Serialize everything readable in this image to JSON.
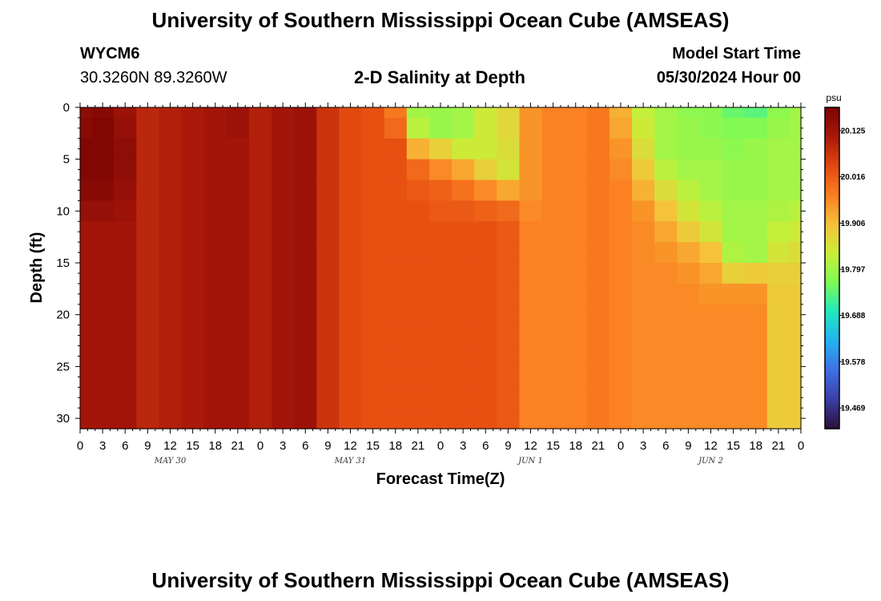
{
  "title": "University of Southern Mississippi Ocean Cube (AMSEAS)",
  "footer_title": "University of Southern Mississippi Ocean Cube (AMSEAS)",
  "station": {
    "id": "WYCM6",
    "coords": "30.3260N  89.3260W"
  },
  "model_start": {
    "label": "Model Start Time",
    "value": "05/30/2024 Hour 00"
  },
  "chart_data": {
    "type": "heatmap",
    "title": "2-D Salinity at Depth",
    "xlabel": "Forecast Time(Z)",
    "ylabel": "Depth (ft)",
    "unit": "psu",
    "x_ticks": [
      "0",
      "3",
      "6",
      "9",
      "12",
      "15",
      "18",
      "21",
      "0",
      "3",
      "6",
      "9",
      "12",
      "15",
      "18",
      "21",
      "0",
      "3",
      "6",
      "9",
      "12",
      "15",
      "18",
      "21",
      "0",
      "3",
      "6",
      "9",
      "12",
      "15",
      "18",
      "21",
      "0"
    ],
    "x_range_hours": [
      0,
      96
    ],
    "day_labels": [
      {
        "label": "MAY 30",
        "hour": 12
      },
      {
        "label": "MAY 31",
        "hour": 36
      },
      {
        "label": "JUN 1",
        "hour": 60
      },
      {
        "label": "JUN 2",
        "hour": 84
      }
    ],
    "y_ticks": [
      0,
      5,
      10,
      15,
      20,
      25,
      30
    ],
    "ylim": [
      0,
      31
    ],
    "y_inverted": true,
    "colorbar": {
      "labels": [
        "20.125",
        "20.016",
        "19.906",
        "19.797",
        "19.688",
        "19.578",
        "19.469"
      ],
      "min": 19.42,
      "max": 20.18,
      "colors": [
        "#2a0e3a",
        "#3b3fa5",
        "#3f6fe6",
        "#24b2f0",
        "#1fe8c0",
        "#7dfb55",
        "#c9ee38",
        "#f6c13a",
        "#fb7e21",
        "#e2480f",
        "#a9180a",
        "#7a0403"
      ]
    },
    "time_hours": [
      0,
      3,
      6,
      9,
      12,
      15,
      18,
      21,
      24,
      27,
      30,
      33,
      36,
      39,
      42,
      45,
      48,
      51,
      54,
      57,
      60,
      63,
      66,
      69,
      72,
      75,
      78,
      81,
      84,
      87,
      90,
      93,
      96
    ],
    "depths_ft": [
      0,
      2,
      4,
      6,
      8,
      10,
      12,
      14,
      16,
      18,
      20,
      22,
      24,
      26,
      28,
      30
    ],
    "salinity_by_time": [
      [
        20.15,
        20.16,
        20.17,
        20.17,
        20.16,
        20.14,
        20.12,
        20.12,
        20.12,
        20.12,
        20.12,
        20.12,
        20.12,
        20.12,
        20.12,
        20.12
      ],
      [
        20.16,
        20.17,
        20.17,
        20.17,
        20.16,
        20.14,
        20.12,
        20.12,
        20.12,
        20.12,
        20.12,
        20.12,
        20.12,
        20.12,
        20.12,
        20.12
      ],
      [
        20.13,
        20.14,
        20.15,
        20.15,
        20.14,
        20.13,
        20.12,
        20.12,
        20.12,
        20.12,
        20.12,
        20.12,
        20.12,
        20.12,
        20.12,
        20.12
      ],
      [
        20.09,
        20.09,
        20.09,
        20.09,
        20.09,
        20.09,
        20.09,
        20.09,
        20.09,
        20.09,
        20.09,
        20.09,
        20.09,
        20.09,
        20.09,
        20.09
      ],
      [
        20.1,
        20.1,
        20.1,
        20.1,
        20.1,
        20.1,
        20.1,
        20.1,
        20.1,
        20.1,
        20.1,
        20.1,
        20.1,
        20.1,
        20.1,
        20.1
      ],
      [
        20.11,
        20.11,
        20.11,
        20.11,
        20.11,
        20.11,
        20.11,
        20.11,
        20.11,
        20.11,
        20.11,
        20.11,
        20.11,
        20.11,
        20.11,
        20.11
      ],
      [
        20.12,
        20.12,
        20.12,
        20.12,
        20.12,
        20.12,
        20.12,
        20.12,
        20.12,
        20.12,
        20.12,
        20.12,
        20.12,
        20.12,
        20.12,
        20.12
      ],
      [
        20.13,
        20.13,
        20.12,
        20.12,
        20.12,
        20.12,
        20.12,
        20.12,
        20.12,
        20.12,
        20.12,
        20.12,
        20.12,
        20.12,
        20.12,
        20.12
      ],
      [
        20.1,
        20.1,
        20.1,
        20.1,
        20.1,
        20.1,
        20.1,
        20.1,
        20.1,
        20.1,
        20.1,
        20.1,
        20.1,
        20.1,
        20.1,
        20.1
      ],
      [
        20.12,
        20.12,
        20.12,
        20.12,
        20.12,
        20.12,
        20.12,
        20.12,
        20.12,
        20.12,
        20.12,
        20.12,
        20.12,
        20.12,
        20.12,
        20.12
      ],
      [
        20.13,
        20.13,
        20.13,
        20.13,
        20.13,
        20.13,
        20.13,
        20.13,
        20.13,
        20.13,
        20.13,
        20.13,
        20.13,
        20.13,
        20.13,
        20.13
      ],
      [
        20.07,
        20.07,
        20.07,
        20.07,
        20.07,
        20.07,
        20.07,
        20.07,
        20.07,
        20.07,
        20.07,
        20.07,
        20.07,
        20.07,
        20.07,
        20.07
      ],
      [
        20.04,
        20.04,
        20.04,
        20.04,
        20.04,
        20.04,
        20.04,
        20.04,
        20.04,
        20.04,
        20.04,
        20.04,
        20.04,
        20.04,
        20.04,
        20.04
      ],
      [
        20.03,
        20.03,
        20.03,
        20.03,
        20.03,
        20.03,
        20.03,
        20.03,
        20.03,
        20.03,
        20.03,
        20.03,
        20.03,
        20.03,
        20.03,
        20.03
      ],
      [
        19.98,
        20.0,
        20.03,
        20.03,
        20.03,
        20.03,
        20.03,
        20.03,
        20.03,
        20.03,
        20.03,
        20.03,
        20.03,
        20.03,
        20.03,
        20.03
      ],
      [
        19.8,
        19.82,
        19.92,
        20.0,
        20.02,
        20.03,
        20.03,
        20.03,
        20.03,
        20.03,
        20.03,
        20.03,
        20.03,
        20.03,
        20.03,
        20.03
      ],
      [
        19.79,
        19.79,
        19.88,
        19.96,
        20.01,
        20.02,
        20.03,
        20.03,
        20.03,
        20.03,
        20.03,
        20.03,
        20.03,
        20.03,
        20.03,
        20.03
      ],
      [
        19.8,
        19.8,
        19.84,
        19.93,
        19.99,
        20.02,
        20.03,
        20.03,
        20.03,
        20.03,
        20.03,
        20.03,
        20.03,
        20.03,
        20.03,
        20.03
      ],
      [
        19.84,
        19.84,
        19.84,
        19.88,
        19.96,
        20.01,
        20.03,
        20.03,
        20.03,
        20.03,
        20.03,
        20.03,
        20.03,
        20.03,
        20.03,
        20.03
      ],
      [
        19.87,
        19.87,
        19.86,
        19.85,
        19.93,
        20.0,
        20.02,
        20.02,
        20.02,
        20.02,
        20.02,
        20.02,
        20.02,
        20.02,
        20.02,
        20.02
      ],
      [
        19.95,
        19.95,
        19.95,
        19.95,
        19.95,
        19.96,
        19.97,
        19.97,
        19.97,
        19.97,
        19.97,
        19.97,
        19.97,
        19.97,
        19.97,
        19.97
      ],
      [
        19.97,
        19.97,
        19.97,
        19.97,
        19.97,
        19.97,
        19.97,
        19.97,
        19.97,
        19.97,
        19.97,
        19.97,
        19.97,
        19.97,
        19.97,
        19.97
      ],
      [
        19.97,
        19.97,
        19.97,
        19.97,
        19.97,
        19.97,
        19.97,
        19.97,
        19.97,
        19.97,
        19.97,
        19.97,
        19.97,
        19.97,
        19.97,
        19.97
      ],
      [
        19.98,
        19.98,
        19.98,
        19.98,
        19.98,
        19.98,
        19.98,
        19.98,
        19.98,
        19.98,
        19.98,
        19.98,
        19.98,
        19.98,
        19.98,
        19.98
      ],
      [
        19.92,
        19.93,
        19.95,
        19.96,
        19.97,
        19.97,
        19.97,
        19.97,
        19.97,
        19.97,
        19.97,
        19.97,
        19.97,
        19.97,
        19.97,
        19.97
      ],
      [
        19.83,
        19.84,
        19.86,
        19.89,
        19.92,
        19.95,
        19.96,
        19.96,
        19.96,
        19.96,
        19.96,
        19.96,
        19.96,
        19.96,
        19.96,
        19.96
      ],
      [
        19.8,
        19.8,
        19.8,
        19.82,
        19.86,
        19.9,
        19.93,
        19.95,
        19.96,
        19.96,
        19.96,
        19.96,
        19.96,
        19.96,
        19.96,
        19.96
      ],
      [
        19.78,
        19.79,
        19.79,
        19.8,
        19.82,
        19.85,
        19.89,
        19.93,
        19.95,
        19.96,
        19.96,
        19.96,
        19.96,
        19.96,
        19.96,
        19.96
      ],
      [
        19.78,
        19.78,
        19.79,
        19.8,
        19.8,
        19.82,
        19.85,
        19.9,
        19.93,
        19.95,
        19.96,
        19.96,
        19.96,
        19.96,
        19.96,
        19.96
      ],
      [
        19.75,
        19.77,
        19.78,
        19.79,
        19.79,
        19.8,
        19.8,
        19.81,
        19.88,
        19.95,
        19.96,
        19.96,
        19.96,
        19.96,
        19.96,
        19.96
      ],
      [
        19.74,
        19.77,
        19.79,
        19.79,
        19.79,
        19.8,
        19.8,
        19.8,
        19.89,
        19.95,
        19.96,
        19.96,
        19.96,
        19.96,
        19.96,
        19.96
      ],
      [
        19.78,
        19.79,
        19.8,
        19.8,
        19.8,
        19.81,
        19.83,
        19.85,
        19.88,
        19.89,
        19.89,
        19.89,
        19.89,
        19.89,
        19.89,
        19.89
      ],
      [
        19.8,
        19.8,
        19.8,
        19.8,
        19.8,
        19.82,
        19.84,
        19.86,
        19.88,
        19.89,
        19.89,
        19.89,
        19.89,
        19.89,
        19.89,
        19.89
      ]
    ]
  }
}
